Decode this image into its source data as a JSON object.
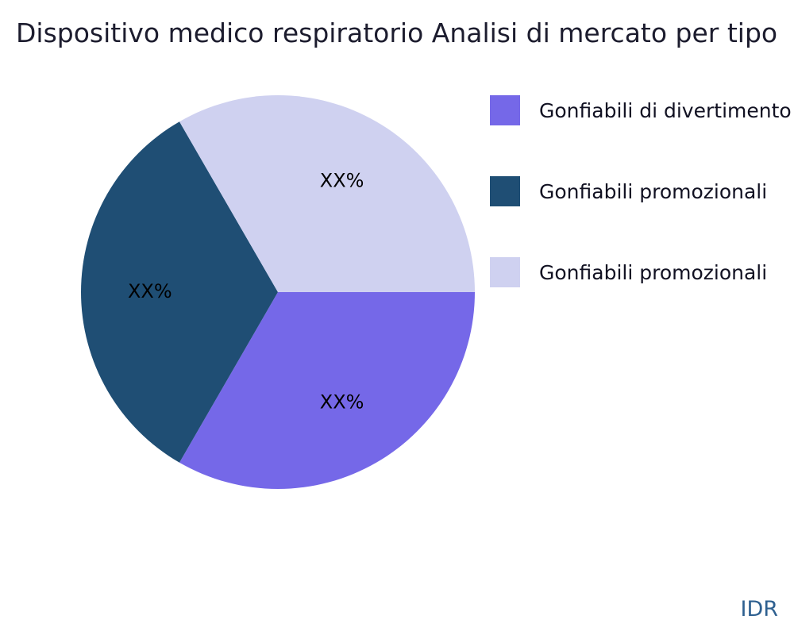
{
  "chart_data": {
    "type": "pie",
    "title": "Dispositivo medico respiratorio Analisi di mercato per tipo",
    "slices": [
      {
        "label": "Gonfiabili di divertimento",
        "display": "XX%",
        "value": 33.33,
        "color": "#7568e8",
        "start_deg": 240,
        "end_deg": 360
      },
      {
        "label": "Gonfiabili promozionali",
        "display": "XX%",
        "value": 33.33,
        "color": "#1f4e74",
        "start_deg": 120,
        "end_deg": 240
      },
      {
        "label": "Gonfiabili promozionali",
        "display": "XX%",
        "value": 33.33,
        "color": "#cfd1f0",
        "start_deg": 0,
        "end_deg": 120
      }
    ],
    "legend_position": "right",
    "grid": false,
    "watermark": "IDR"
  }
}
